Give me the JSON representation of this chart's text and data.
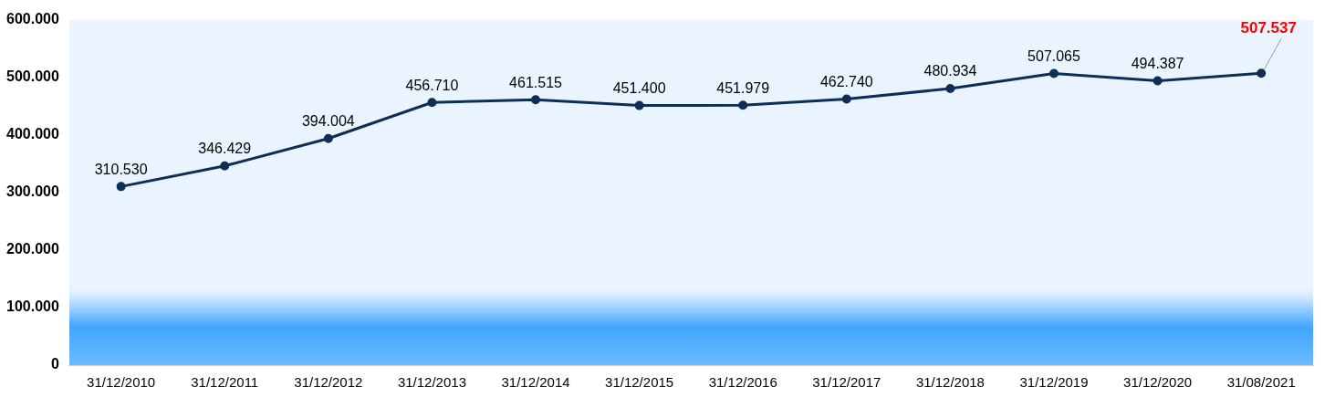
{
  "chart_data": {
    "type": "line",
    "categories": [
      "31/12/2010",
      "31/12/2011",
      "31/12/2012",
      "31/12/2013",
      "31/12/2014",
      "31/12/2015",
      "31/12/2016",
      "31/12/2017",
      "31/12/2018",
      "31/12/2019",
      "31/12/2020",
      "31/08/2021"
    ],
    "series": [
      {
        "color": "#0d2f55",
        "values": [
          310530,
          346429,
          394004,
          456710,
          461515,
          451400,
          451979,
          462740,
          480934,
          507065,
          494387,
          507537
        ],
        "value_labels": [
          "310.530",
          "346.429",
          "394.004",
          "456.710",
          "461.515",
          "451.400",
          "451.979",
          "462.740",
          "480.934",
          "507.065",
          "494.387",
          null
        ]
      }
    ],
    "annotations": [
      {
        "text": "507.537",
        "x": "31/08/2021",
        "y": 507537
      }
    ],
    "ylim": [
      0,
      600000
    ],
    "yticks": [
      0,
      {
        "value": 100000,
        "label": "100.000"
      },
      {
        "value": 200000,
        "label": "200.000"
      },
      {
        "value": 300000,
        "label": "300.000"
      },
      {
        "value": 400000,
        "label": "400.000"
      },
      {
        "value": 500000,
        "label": "500.000"
      },
      {
        "value": 600000,
        "label": "600.000"
      }
    ],
    "grid": false,
    "legend": false,
    "marker": "circle",
    "line_style": "solid"
  }
}
